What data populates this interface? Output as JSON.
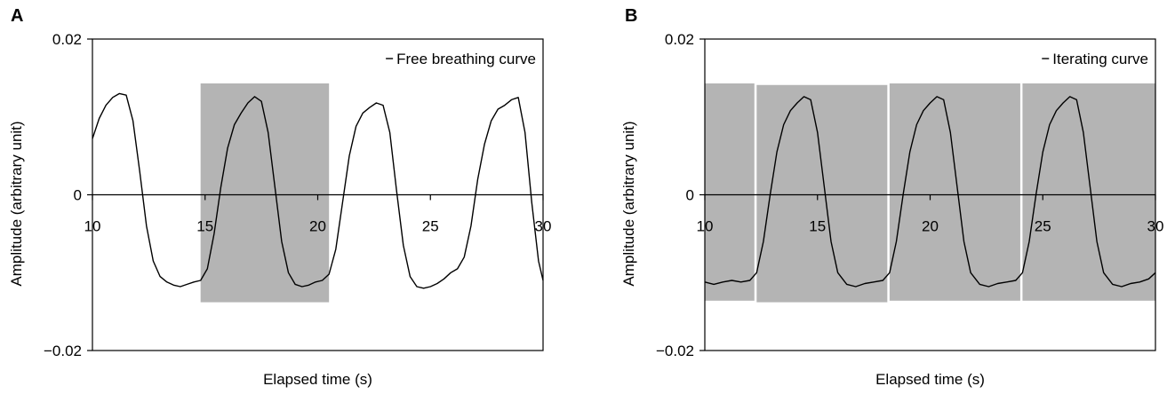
{
  "chart_data": [
    {
      "panel_label": "A",
      "type": "line",
      "title": "",
      "xlabel": "Elapsed time (s)",
      "ylabel": "Amplitude (arbitrary unit)",
      "xlim": [
        10,
        30
      ],
      "ylim": [
        -0.02,
        0.02
      ],
      "x_ticks": [
        10,
        15,
        20,
        25,
        30
      ],
      "y_tick_labels": [
        "0.02",
        "0",
        "−0.02"
      ],
      "y_ticks": [
        0.02,
        0,
        -0.02
      ],
      "legend_position": "top-right",
      "grid": false,
      "series": [
        {
          "name": "Free breathing curve",
          "x": [
            10.0,
            10.3,
            10.6,
            10.9,
            11.2,
            11.5,
            11.8,
            12.1,
            12.4,
            12.7,
            13.0,
            13.3,
            13.6,
            13.9,
            14.2,
            14.5,
            14.8,
            15.1,
            15.4,
            15.7,
            16.0,
            16.3,
            16.6,
            16.9,
            17.2,
            17.5,
            17.8,
            18.1,
            18.4,
            18.7,
            19.0,
            19.3,
            19.6,
            19.9,
            20.2,
            20.5,
            20.8,
            21.1,
            21.4,
            21.7,
            22.0,
            22.3,
            22.6,
            22.9,
            23.2,
            23.5,
            23.8,
            24.1,
            24.4,
            24.7,
            25.0,
            25.3,
            25.6,
            25.9,
            26.2,
            26.5,
            26.8,
            27.1,
            27.4,
            27.7,
            28.0,
            28.3,
            28.6,
            28.9,
            29.2,
            29.5,
            29.8,
            30.0
          ],
          "y": [
            0.0072,
            0.0098,
            0.0115,
            0.0125,
            0.013,
            0.0128,
            0.0095,
            0.003,
            -0.004,
            -0.0085,
            -0.0105,
            -0.0112,
            -0.0116,
            -0.0118,
            -0.0115,
            -0.0112,
            -0.011,
            -0.0095,
            -0.005,
            0.001,
            0.006,
            0.009,
            0.0105,
            0.0118,
            0.0126,
            0.012,
            0.008,
            0.001,
            -0.006,
            -0.01,
            -0.0115,
            -0.0118,
            -0.0116,
            -0.0112,
            -0.011,
            -0.0102,
            -0.007,
            -0.001,
            0.005,
            0.0088,
            0.0105,
            0.0112,
            0.0118,
            0.0115,
            0.008,
            0.0005,
            -0.0065,
            -0.0105,
            -0.0118,
            -0.012,
            -0.0118,
            -0.0114,
            -0.0108,
            -0.01,
            -0.0095,
            -0.008,
            -0.004,
            0.002,
            0.0065,
            0.0095,
            0.011,
            0.0115,
            0.0122,
            0.0125,
            0.008,
            -0.001,
            -0.0085,
            -0.011
          ]
        }
      ],
      "shaded_regions": [
        {
          "x_start": 14.8,
          "x_end": 20.5,
          "y_low": -0.0138,
          "y_high": 0.0143
        }
      ]
    },
    {
      "panel_label": "B",
      "type": "line",
      "title": "",
      "xlabel": "Elapsed time (s)",
      "ylabel": "Amplitude (arbitrary unit)",
      "xlim": [
        10,
        30
      ],
      "ylim": [
        -0.02,
        0.02
      ],
      "x_ticks": [
        10,
        15,
        20,
        25,
        30
      ],
      "y_tick_labels": [
        "0.02",
        "0",
        "−0.02"
      ],
      "y_ticks": [
        0.02,
        0,
        -0.02
      ],
      "legend_position": "top-right",
      "grid": false,
      "series": [
        {
          "name": "Iterating curve",
          "x": [
            10.0,
            10.4,
            10.8,
            11.2,
            11.6,
            12.0,
            12.3,
            12.6,
            12.9,
            13.2,
            13.5,
            13.8,
            14.1,
            14.4,
            14.7,
            15.0,
            15.3,
            15.6,
            15.9,
            16.3,
            16.7,
            17.1,
            17.5,
            17.9,
            18.2,
            18.5,
            18.8,
            19.1,
            19.4,
            19.7,
            20.0,
            20.3,
            20.6,
            20.9,
            21.2,
            21.5,
            21.8,
            22.2,
            22.6,
            23.0,
            23.4,
            23.8,
            24.1,
            24.4,
            24.7,
            25.0,
            25.3,
            25.6,
            25.9,
            26.2,
            26.5,
            26.8,
            27.1,
            27.4,
            27.7,
            28.1,
            28.5,
            28.9,
            29.3,
            29.7,
            30.0
          ],
          "y": [
            -0.0112,
            -0.0115,
            -0.0112,
            -0.011,
            -0.0112,
            -0.011,
            -0.01,
            -0.006,
            0.0,
            0.0055,
            0.009,
            0.0108,
            0.0118,
            0.0126,
            0.0122,
            0.008,
            0.001,
            -0.006,
            -0.01,
            -0.0115,
            -0.0118,
            -0.0114,
            -0.0112,
            -0.011,
            -0.01,
            -0.006,
            0.0,
            0.0055,
            0.009,
            0.0108,
            0.0118,
            0.0126,
            0.0122,
            0.008,
            0.001,
            -0.006,
            -0.01,
            -0.0115,
            -0.0118,
            -0.0114,
            -0.0112,
            -0.011,
            -0.01,
            -0.006,
            0.0,
            0.0055,
            0.009,
            0.0108,
            0.0118,
            0.0126,
            0.0122,
            0.008,
            0.001,
            -0.006,
            -0.01,
            -0.0115,
            -0.0118,
            -0.0114,
            -0.0112,
            -0.0108,
            -0.01
          ]
        }
      ],
      "shaded_regions": [
        {
          "x_start": 10.0,
          "x_end": 12.2,
          "y_low": -0.0136,
          "y_high": 0.0143
        },
        {
          "x_start": 12.3,
          "x_end": 18.1,
          "y_low": -0.0138,
          "y_high": 0.0141
        },
        {
          "x_start": 18.2,
          "x_end": 24.0,
          "y_low": -0.0136,
          "y_high": 0.0143
        },
        {
          "x_start": 24.1,
          "x_end": 30.0,
          "y_low": -0.0136,
          "y_high": 0.0143
        }
      ]
    }
  ],
  "colors": {
    "shade": "#b4b4b4",
    "curve": "#000000",
    "axis": "#000000"
  }
}
